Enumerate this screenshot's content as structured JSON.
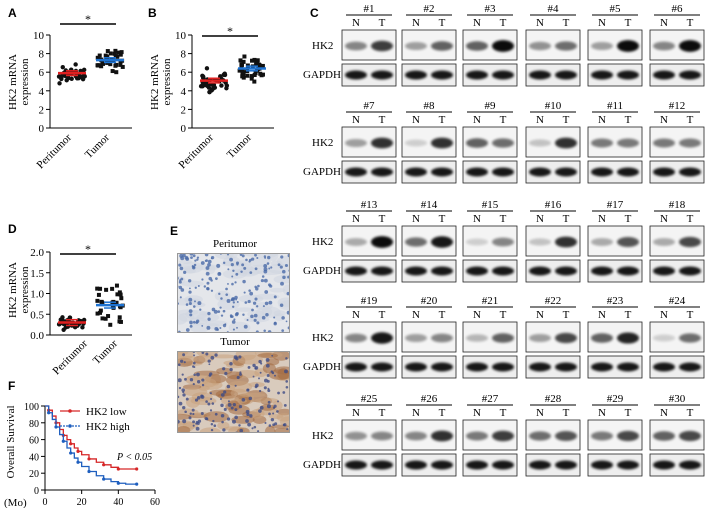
{
  "panels": {
    "A": {
      "letter": "A",
      "ylabel_line1": "HK2 mRNA",
      "ylabel_line2": "expression",
      "yticks": [
        "0",
        "2",
        "4",
        "6",
        "8",
        "10"
      ],
      "groups": [
        "Peritumor",
        "Tumor"
      ],
      "significance": "*",
      "means": [
        5.9,
        7.3
      ],
      "ylim": [
        0,
        10
      ]
    },
    "B": {
      "letter": "B",
      "ylabel_line1": "HK2 mRNA",
      "ylabel_line2": "expression",
      "yticks": [
        "0",
        "2",
        "4",
        "6",
        "8",
        "10"
      ],
      "groups": [
        "Peritumor",
        "Tumor"
      ],
      "significance": "*",
      "means": [
        5.1,
        6.4
      ],
      "ylim": [
        0,
        10
      ]
    },
    "C": {
      "letter": "C",
      "row_labels": [
        "HK2",
        "GAPDH"
      ],
      "lane_labels": [
        "N",
        "T"
      ],
      "samples": [
        "#1",
        "#2",
        "#3",
        "#4",
        "#5",
        "#6",
        "#7",
        "#8",
        "#9",
        "#10",
        "#11",
        "#12",
        "#13",
        "#14",
        "#15",
        "#16",
        "#17",
        "#18",
        "#19",
        "#20",
        "#21",
        "#22",
        "#23",
        "#24",
        "#25",
        "#26",
        "#27",
        "#28",
        "#29",
        "#30"
      ],
      "hk2_intensity": [
        [
          0.45,
          0.75
        ],
        [
          0.35,
          0.6
        ],
        [
          0.6,
          0.95
        ],
        [
          0.4,
          0.55
        ],
        [
          0.35,
          0.95
        ],
        [
          0.45,
          0.95
        ],
        [
          0.35,
          0.8
        ],
        [
          0.15,
          0.8
        ],
        [
          0.6,
          0.55
        ],
        [
          0.2,
          0.8
        ],
        [
          0.5,
          0.5
        ],
        [
          0.5,
          0.5
        ],
        [
          0.3,
          0.95
        ],
        [
          0.55,
          0.9
        ],
        [
          0.15,
          0.45
        ],
        [
          0.2,
          0.8
        ],
        [
          0.3,
          0.65
        ],
        [
          0.3,
          0.7
        ],
        [
          0.45,
          0.9
        ],
        [
          0.35,
          0.45
        ],
        [
          0.25,
          0.6
        ],
        [
          0.35,
          0.7
        ],
        [
          0.6,
          0.85
        ],
        [
          0.15,
          0.55
        ],
        [
          0.4,
          0.45
        ],
        [
          0.45,
          0.8
        ],
        [
          0.5,
          0.75
        ],
        [
          0.55,
          0.65
        ],
        [
          0.5,
          0.7
        ],
        [
          0.6,
          0.7
        ]
      ]
    },
    "D": {
      "letter": "D",
      "ylabel_line1": "HK2 mRNA",
      "ylabel_line2": "expression",
      "yticks": [
        "0.0",
        "0.5",
        "1.0",
        "1.5",
        "2.0"
      ],
      "groups": [
        "Peritumor",
        "Tumor"
      ],
      "significance": "*",
      "means": [
        0.3,
        0.72
      ],
      "ylim": [
        0,
        2.0
      ]
    },
    "E": {
      "letter": "E",
      "top_caption": "Peritumor",
      "bottom_caption": "Tumor"
    },
    "F": {
      "letter": "F",
      "ylabel": "Overall Survival",
      "xlabel_unit": "(Mo)",
      "yticks": [
        "0",
        "20",
        "40",
        "60",
        "80",
        "100"
      ],
      "xticks": [
        "0",
        "20",
        "40",
        "60"
      ],
      "legend": [
        "HK2 low",
        "HK2 high"
      ],
      "pvalue": "P < 0.05",
      "colors": {
        "low": "#d62728",
        "high": "#1f5fbf"
      },
      "chart_data": {
        "type": "line",
        "xlim": [
          0,
          60
        ],
        "ylim": [
          0,
          100
        ],
        "series": [
          {
            "name": "HK2 low",
            "x": [
              0,
              2,
              4,
              6,
              8,
              10,
              12,
              14,
              16,
              18,
              20,
              24,
              28,
              32,
              36,
              40,
              44,
              50
            ],
            "y": [
              100,
              95,
              88,
              80,
              72,
              65,
              60,
              55,
              50,
              46,
              42,
              37,
              33,
              30,
              27,
              25,
              25,
              25
            ]
          },
          {
            "name": "HK2 high",
            "x": [
              0,
              2,
              4,
              6,
              8,
              10,
              12,
              14,
              16,
              18,
              20,
              24,
              28,
              32,
              36,
              40,
              44,
              50
            ],
            "y": [
              100,
              92,
              84,
              75,
              66,
              58,
              50,
              44,
              38,
              33,
              28,
              22,
              17,
              13,
              10,
              8,
              7,
              7
            ]
          }
        ]
      }
    }
  }
}
